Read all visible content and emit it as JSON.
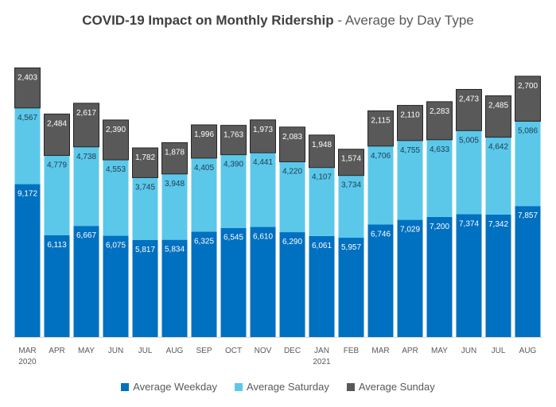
{
  "title": {
    "main": "COVID-19 Impact on Monthly Ridership",
    "sep": " - ",
    "sub": "Average by Day Type"
  },
  "colors": {
    "weekday": "#0070C0",
    "saturday": "#5BC8EA",
    "sunday": "#595959"
  },
  "chart_data": {
    "type": "bar",
    "stacked": true,
    "title": "COVID-19 Impact on Monthly Ridership - Average by Day Type",
    "categories": [
      "MAR\n2020",
      "APR",
      "MAY",
      "JUN",
      "JUL",
      "AUG",
      "SEP",
      "OCT",
      "NOV",
      "DEC",
      "JAN\n2021",
      "FEB",
      "MAR",
      "APR",
      "MAY",
      "JUN",
      "JUL",
      "AUG"
    ],
    "series": [
      {
        "name": "Average Weekday",
        "color": "#0070C0",
        "values": [
          9172,
          6113,
          6667,
          6075,
          5817,
          5834,
          6325,
          6545,
          6610,
          6290,
          6061,
          5957,
          6746,
          7029,
          7200,
          7374,
          7342,
          7857
        ]
      },
      {
        "name": "Average Saturday",
        "color": "#5BC8EA",
        "values": [
          4567,
          4779,
          4738,
          4553,
          3745,
          3948,
          4405,
          4390,
          4441,
          4220,
          4107,
          3734,
          4706,
          4755,
          4633,
          5005,
          4642,
          5086
        ]
      },
      {
        "name": "Average Sunday",
        "color": "#595959",
        "values": [
          2403,
          2484,
          2617,
          2390,
          1782,
          1878,
          1996,
          1763,
          1973,
          2083,
          1948,
          1574,
          2115,
          2110,
          2283,
          2473,
          2485,
          2700
        ]
      }
    ],
    "ylim": [
      0,
      16400
    ],
    "grid": false,
    "legend": "bottom"
  }
}
